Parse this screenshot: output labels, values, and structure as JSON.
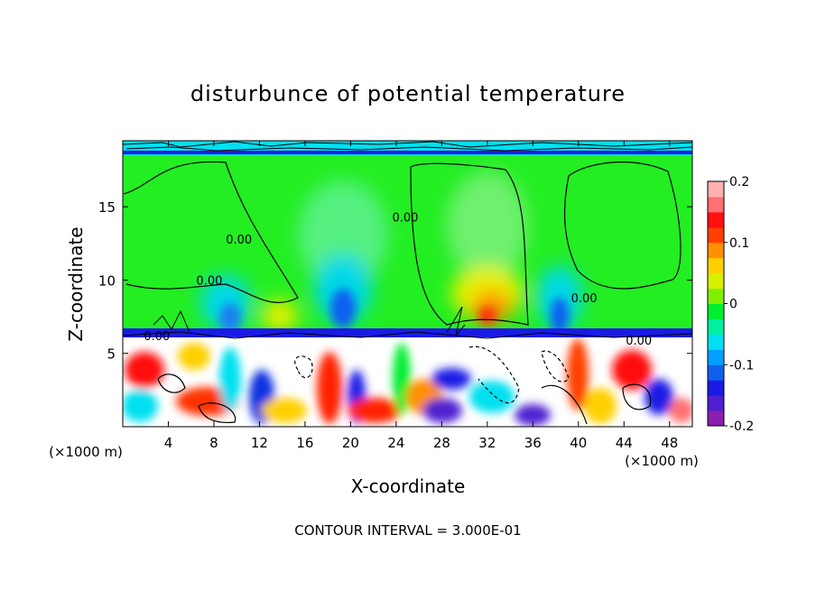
{
  "chart_data": {
    "type": "heatmap",
    "title": "disturbunce of potential temperature",
    "xlabel": "X-coordinate",
    "ylabel": "Z-coordinate",
    "x_unit": "(×1000 m)",
    "z_unit": "(×1000 m)",
    "xlim": [
      0,
      50
    ],
    "ylim": [
      0,
      19.5
    ],
    "x_ticks": [
      "4",
      "8",
      "12",
      "16",
      "20",
      "24",
      "28",
      "32",
      "36",
      "40",
      "44",
      "48"
    ],
    "x_tick_values": [
      4,
      8,
      12,
      16,
      20,
      24,
      28,
      32,
      36,
      40,
      44,
      48
    ],
    "y_ticks": [
      "5",
      "10",
      "15"
    ],
    "y_tick_values": [
      5,
      10,
      15
    ],
    "colorbar": {
      "range": [
        -0.2,
        0.2
      ],
      "labels": [
        "0.2",
        "0.1",
        "0",
        "-0.1",
        "-0.2"
      ],
      "label_values": [
        0.2,
        0.1,
        0,
        -0.1,
        -0.2
      ],
      "colors": [
        "#8a1fb0",
        "#5020d0",
        "#1a1ae6",
        "#1060f0",
        "#00a0ff",
        "#00e0f0",
        "#00f0a0",
        "#00ee30",
        "#80f000",
        "#d8f000",
        "#ffd000",
        "#ff9000",
        "#ff4000",
        "#ff1010",
        "#ff7070",
        "#ffb0b0"
      ]
    },
    "contour_labels": [
      "0.00",
      "0.00",
      "0.00",
      "0.00",
      "0.00",
      "0.00"
    ],
    "contour_label_positions": [
      [
        10.2,
        12.5
      ],
      [
        7.6,
        9.7
      ],
      [
        24.8,
        14.0
      ],
      [
        40.5,
        8.5
      ],
      [
        45.3,
        5.6
      ],
      [
        3.0,
        5.9
      ]
    ],
    "contour_interval_text": "CONTOUR INTERVAL = 3.000E-01"
  }
}
